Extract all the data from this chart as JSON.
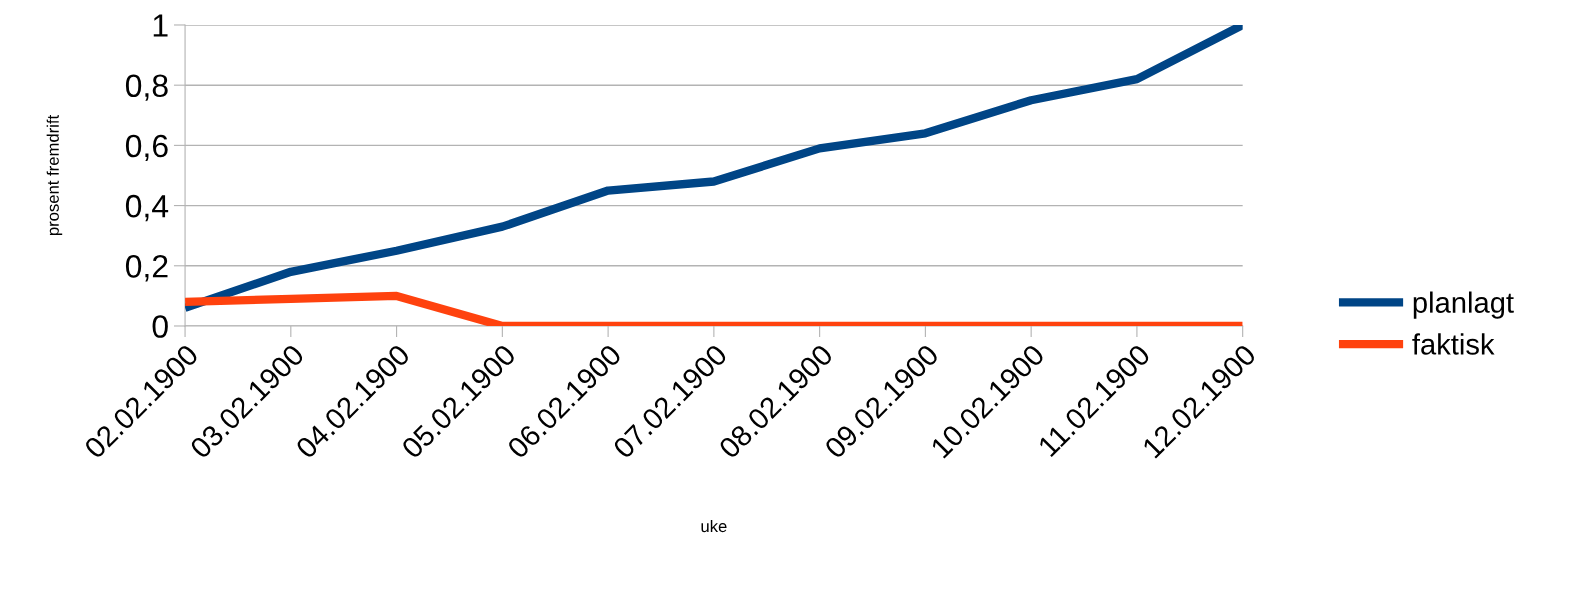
{
  "chart_data": {
    "type": "line",
    "xlabel": "uke",
    "ylabel": "prosent fremdrift",
    "categories": [
      "02.02.1900",
      "03.02.1900",
      "04.02.1900",
      "05.02.1900",
      "06.02.1900",
      "07.02.1900",
      "08.02.1900",
      "09.02.1900",
      "10.02.1900",
      "11.02.1900",
      "12.02.1900"
    ],
    "series": [
      {
        "name": "planlagt",
        "color": "#004586",
        "values": [
          0.06,
          0.18,
          0.25,
          0.33,
          0.45,
          0.48,
          0.59,
          0.64,
          0.75,
          0.82,
          1.0
        ]
      },
      {
        "name": "faktisk",
        "color": "#ff420e",
        "values": [
          0.08,
          0.09,
          0.1,
          0,
          0,
          0,
          0,
          0,
          0,
          0,
          0
        ]
      }
    ],
    "ylim": [
      0,
      1
    ],
    "yticks": [
      0,
      {
        "value": 0.2,
        "label": "0,2"
      },
      {
        "value": 0.4,
        "label": "0,4"
      },
      {
        "value": 0.6,
        "label": "0,6"
      },
      {
        "value": 0.8,
        "label": "0,8"
      },
      1
    ],
    "grid": "y",
    "legend": "right",
    "marker": "none",
    "line_style": "solid"
  }
}
